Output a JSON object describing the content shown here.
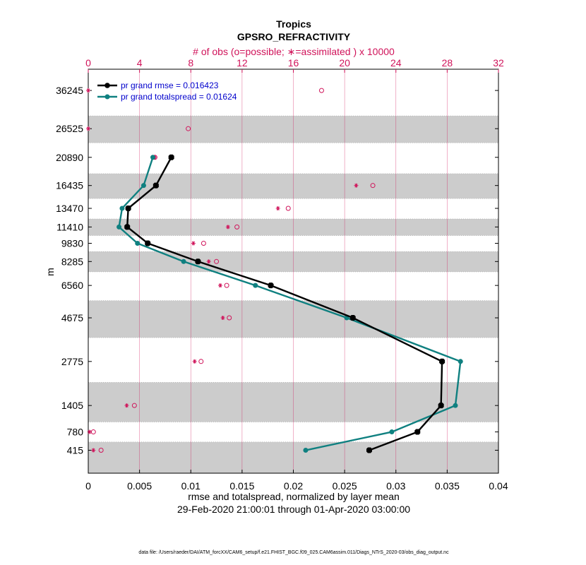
{
  "colors": {
    "rmse": "#000000",
    "spread": "#0f8080",
    "obs": "#d0135a",
    "band": "#cccccc",
    "legend_text": "#0000cc"
  },
  "footnote": "data file: /Users/raeder/DAI/ATM_forcXX/CAM6_setup/f.e21.FHIST_BGC.f09_025.CAM6assim.011/Diags_NTrS_2020-03/obs_diag_output.nc",
  "chart_data": {
    "type": "line",
    "title": "Tropics",
    "subtitle": "GPSRO_REFRACTIVITY",
    "top_axis_label": "# of obs (o=possible; ∗=assimilated ) x 10000",
    "xlabel": "rmse and totalspread, normalized by layer mean",
    "xlabel2": "29-Feb-2020 21:00:01 through 01-Apr-2020 03:00:00",
    "ylabel": "m",
    "xlim": [
      0,
      0.04
    ],
    "x_ticks": [
      0,
      0.005,
      0.01,
      0.015,
      0.02,
      0.025,
      0.03,
      0.035,
      0.04
    ],
    "x_tick_labels": [
      "0",
      "0.005",
      "0.01",
      "0.015",
      "0.02",
      "0.025",
      "0.03",
      "0.035",
      "0.04"
    ],
    "top_xlim": [
      0,
      32
    ],
    "top_ticks": [
      0,
      4,
      8,
      12,
      16,
      20,
      24,
      28,
      32
    ],
    "top_tick_labels": [
      "0",
      "4",
      "8",
      "12",
      "16",
      "20",
      "24",
      "28",
      "32"
    ],
    "levels": [
      415,
      780,
      1405,
      2775,
      4675,
      6560,
      8285,
      9830,
      11410,
      13470,
      16435,
      20890,
      26525,
      36245
    ],
    "level_labels": [
      "415",
      "780",
      "1405",
      "2775",
      "4675",
      "6560",
      "8285",
      "9830",
      "11410",
      "13470",
      "16435",
      "20890",
      "26525",
      "36245"
    ],
    "layer_edges": [
      25,
      573,
      1000,
      2067,
      3733,
      5617,
      7500,
      9105,
      10555,
      12265,
      14675,
      18195,
      23585,
      29465,
      43025
    ],
    "shaded_layers": [
      0,
      2,
      4,
      6,
      8,
      10,
      12
    ],
    "grid": true,
    "legend_placement": "top-left",
    "series": [
      {
        "name": "pr grand rmse = 0.016423",
        "values": [
          0.0274,
          0.0321,
          0.0344,
          0.0345,
          0.0258,
          0.0178,
          0.0107,
          0.0058,
          0.0038,
          0.0039,
          0.0066,
          0.0081
        ]
      },
      {
        "name": "pr grand totalspread = 0.01624",
        "values": [
          0.0212,
          0.0296,
          0.0358,
          0.0363,
          0.0252,
          0.0163,
          0.0093,
          0.0048,
          0.003,
          0.0033,
          0.0054,
          0.0063
        ]
      }
    ],
    "obs_possible": [
      1.0,
      0.4,
      3.6,
      8.8,
      11.0,
      10.8,
      10.0,
      9.0,
      11.6,
      15.6,
      22.2,
      5.2,
      7.8,
      18.2
    ],
    "obs_assimilated": [
      0.4,
      0.1,
      3.0,
      8.3,
      10.5,
      10.3,
      9.4,
      8.2,
      10.9,
      14.8,
      20.9,
      5.2,
      0.0,
      0.0
    ]
  }
}
